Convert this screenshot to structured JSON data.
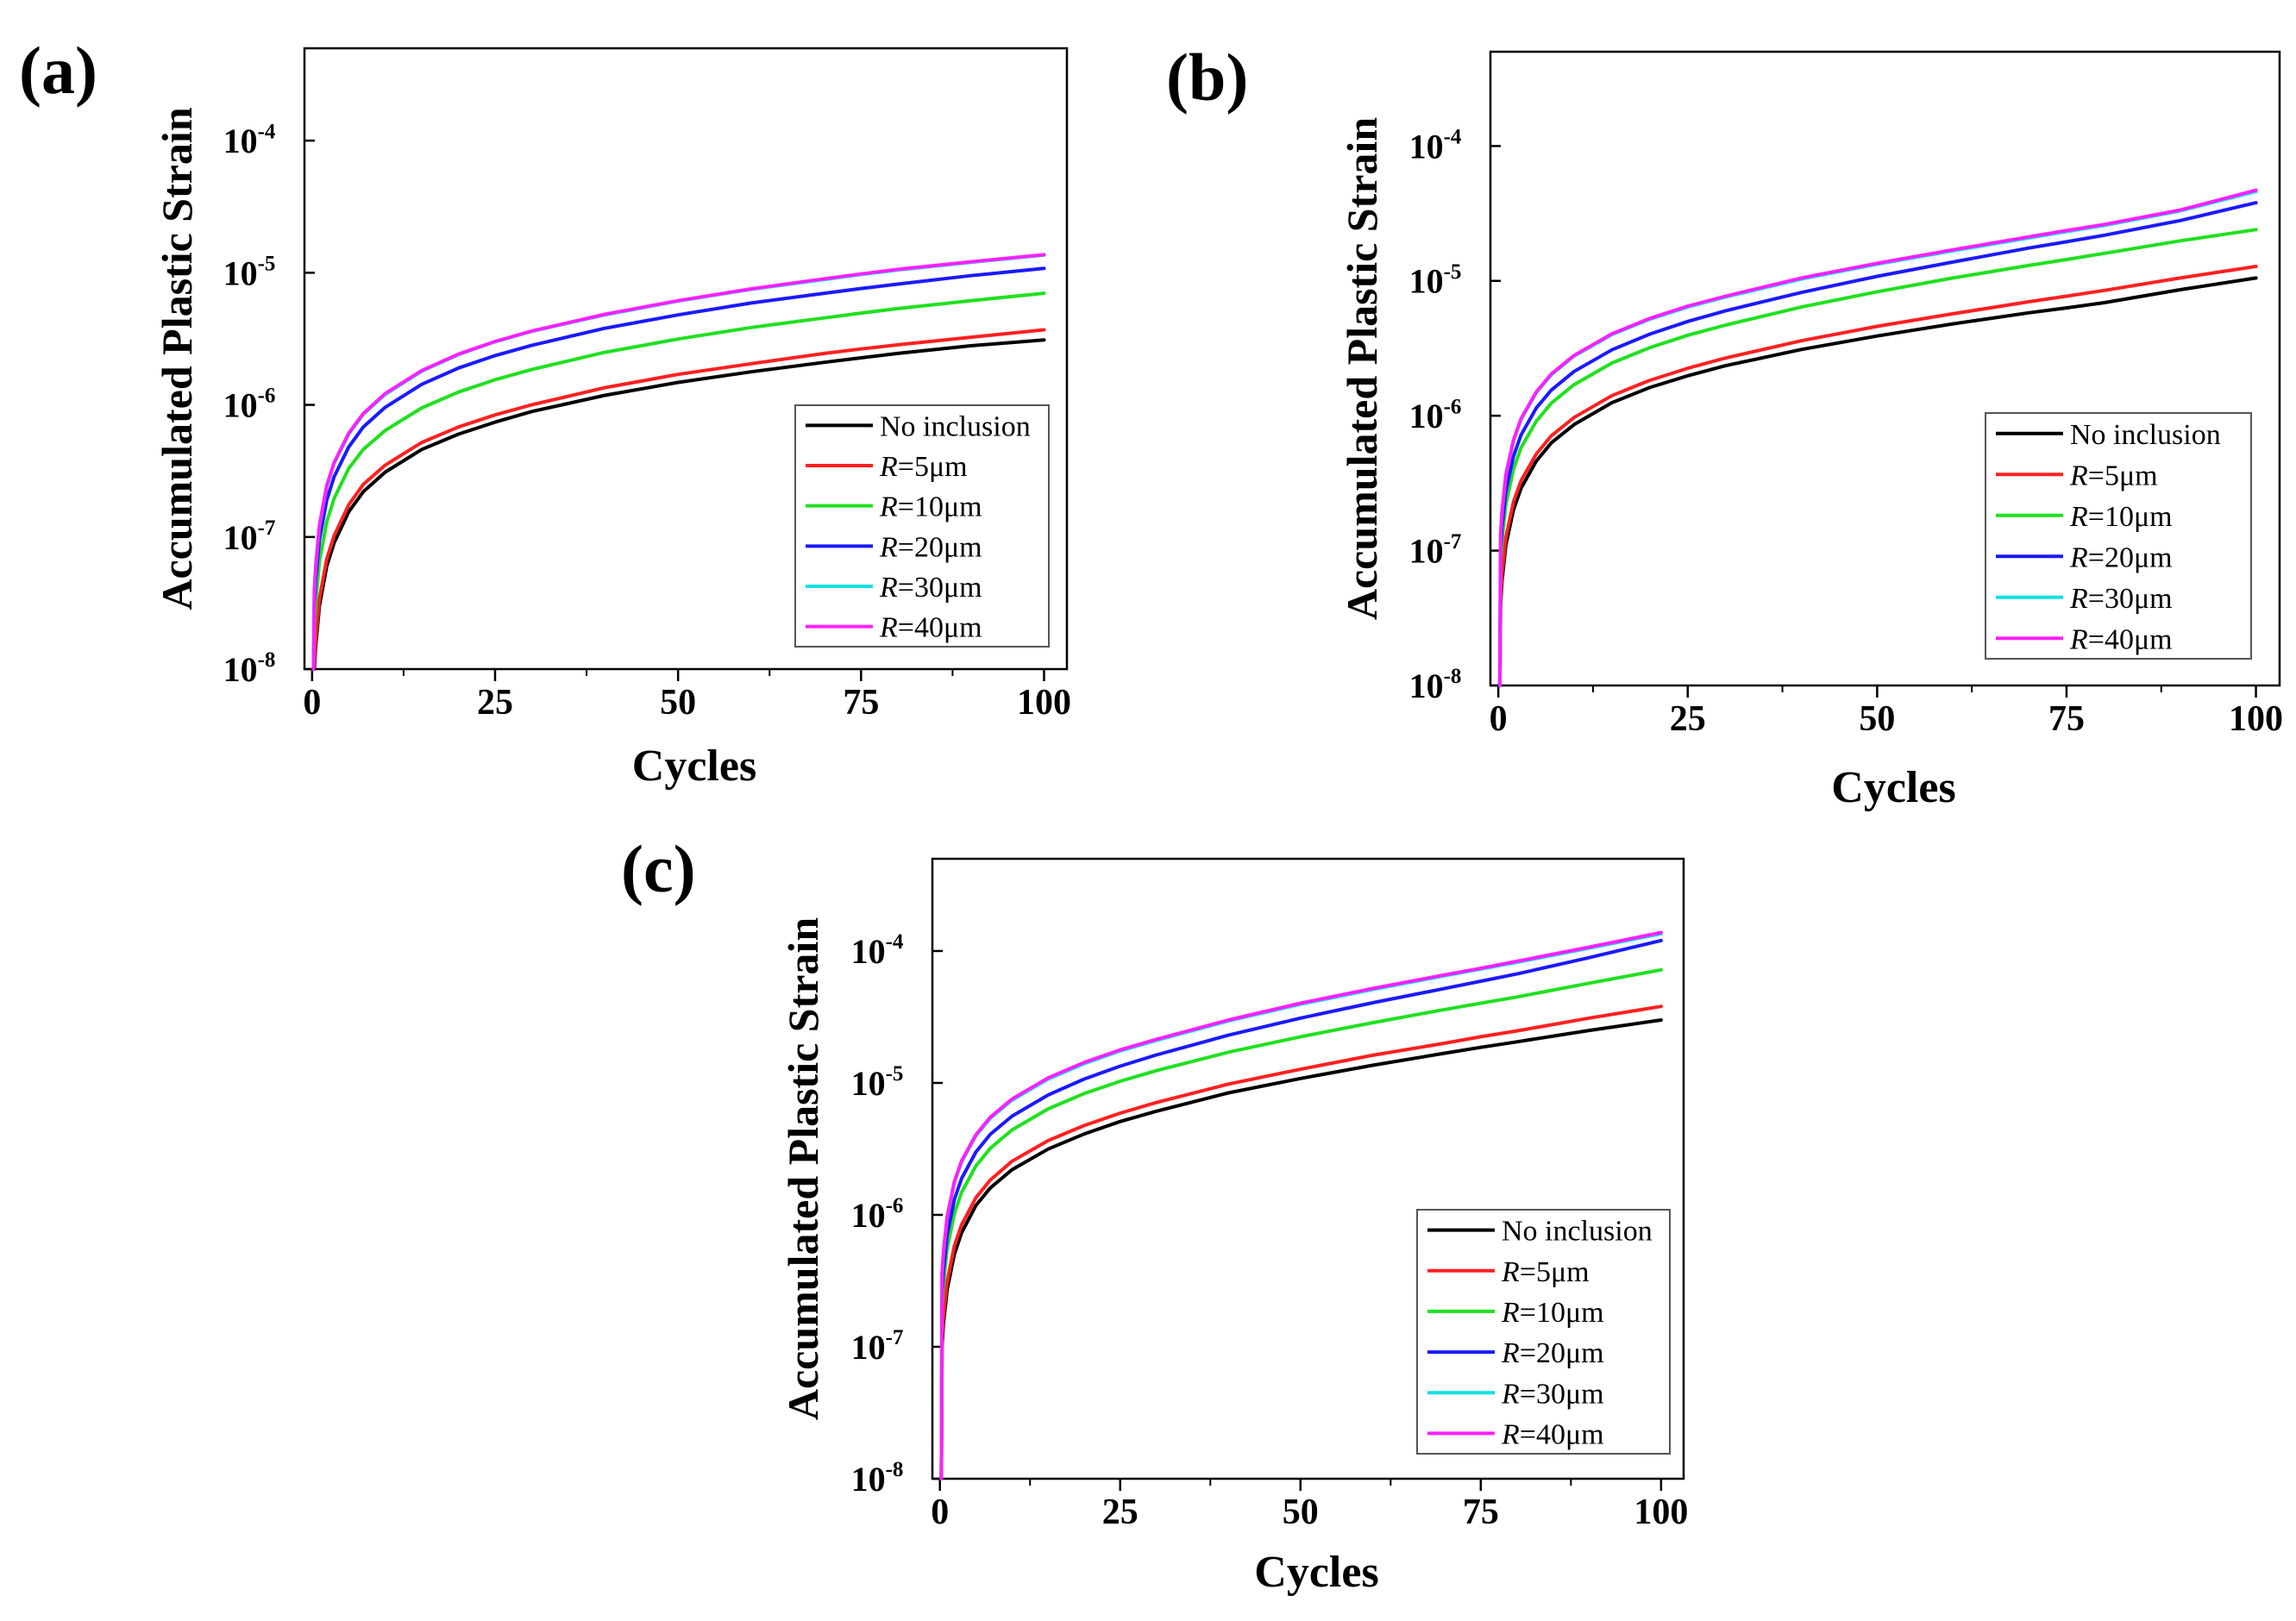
{
  "figure": {
    "colors": {
      "No inclusion": "#000000",
      "R=5μm": "#ff2020",
      "R=10μm": "#20e020",
      "R=20μm": "#1a1aff",
      "R=30μm": "#10e0e0",
      "R=40μm": "#ff20ff"
    }
  },
  "chart_data": [
    {
      "panel_label": "(a)",
      "type": "line",
      "xlabel": "Cycles",
      "ylabel": "Accumulated Plastic Strain",
      "xlim": [
        0,
        100
      ],
      "ylim": [
        1e-08,
        0.0005
      ],
      "yscale": "log",
      "xticks": [
        {
          "v": 0,
          "label": "0"
        },
        {
          "v": 25,
          "label": "25"
        },
        {
          "v": 50,
          "label": "50"
        },
        {
          "v": 75,
          "label": "75"
        },
        {
          "v": 100,
          "label": "100"
        }
      ],
      "yticks": [
        {
          "exp": -8,
          "base": "10",
          "sup": "-8"
        },
        {
          "exp": -7,
          "base": "10",
          "sup": "-7"
        },
        {
          "exp": -6,
          "base": "10",
          "sup": "-6"
        },
        {
          "exp": -5,
          "base": "10",
          "sup": "-5"
        },
        {
          "exp": -4,
          "base": "10",
          "sup": "-4"
        }
      ],
      "legend_position": "lower-right",
      "x": [
        0.3,
        0.5,
        1,
        2,
        3,
        5,
        7,
        10,
        15,
        20,
        25,
        30,
        40,
        50,
        60,
        70,
        75,
        80,
        90,
        100
      ],
      "series": [
        {
          "name": "No inclusion",
          "label_italic": "",
          "label_rest": "No inclusion",
          "values": [
            1e-08,
            1.5e-08,
            3e-08,
            6e-08,
            9e-08,
            1.55e-07,
            2.2e-07,
            3.1e-07,
            4.6e-07,
            6e-07,
            7.4e-07,
            8.9e-07,
            1.18e-06,
            1.48e-06,
            1.78e-06,
            2.1e-06,
            2.27e-06,
            2.45e-06,
            2.8e-06,
            3.1e-06
          ]
        },
        {
          "name": "R=5μm",
          "label_italic": "R",
          "label_rest": "=5μm",
          "values": [
            1.1e-08,
            1.7e-08,
            3.4e-08,
            6.8e-08,
            1.02e-07,
            1.75e-07,
            2.5e-07,
            3.5e-07,
            5.2e-07,
            6.8e-07,
            8.4e-07,
            1e-06,
            1.35e-06,
            1.7e-06,
            2.05e-06,
            2.45e-06,
            2.65e-06,
            2.85e-06,
            3.25e-06,
            3.7e-06
          ]
        },
        {
          "name": "R=10μm",
          "label_italic": "R",
          "label_rest": "=10μm",
          "values": [
            2e-08,
            3.2e-08,
            6.5e-08,
            1.3e-07,
            1.95e-07,
            3.3e-07,
            4.6e-07,
            6.4e-07,
            9.5e-07,
            1.25e-06,
            1.55e-06,
            1.85e-06,
            2.5e-06,
            3.15e-06,
            3.85e-06,
            4.55e-06,
            4.95e-06,
            5.35e-06,
            6.15e-06,
            7e-06
          ]
        },
        {
          "name": "R=20μm",
          "label_italic": "R",
          "label_rest": "=20μm",
          "values": [
            3e-08,
            4.8e-08,
            9.5e-08,
            1.9e-07,
            2.85e-07,
            4.8e-07,
            6.8e-07,
            9.6e-07,
            1.43e-06,
            1.9e-06,
            2.36e-06,
            2.82e-06,
            3.8e-06,
            4.8e-06,
            5.9e-06,
            7e-06,
            7.6e-06,
            8.2e-06,
            9.5e-06,
            1.08e-05
          ]
        },
        {
          "name": "R=30μm",
          "label_italic": "R",
          "label_rest": "=30μm",
          "values": [
            3.8e-08,
            6e-08,
            1.2e-07,
            2.4e-07,
            3.6e-07,
            6e-07,
            8.5e-07,
            1.2e-06,
            1.8e-06,
            2.4e-06,
            3e-06,
            3.6e-06,
            4.8e-06,
            6.1e-06,
            7.5e-06,
            8.9e-06,
            9.7e-06,
            1.05e-05,
            1.2e-05,
            1.36e-05
          ]
        },
        {
          "name": "R=40μm",
          "label_italic": "R",
          "label_rest": "=40μm",
          "values": [
            3.9e-08,
            6.1e-08,
            1.22e-07,
            2.45e-07,
            3.65e-07,
            6.1e-07,
            8.6e-07,
            1.22e-06,
            1.82e-06,
            2.42e-06,
            3.02e-06,
            3.62e-06,
            4.85e-06,
            6.15e-06,
            7.55e-06,
            9e-06,
            9.8e-06,
            1.06e-05,
            1.21e-05,
            1.37e-05
          ]
        }
      ]
    },
    {
      "panel_label": "(b)",
      "type": "line",
      "xlabel": "Cycles",
      "ylabel": "Accumulated Plastic Strain",
      "xlim": [
        0,
        100
      ],
      "ylim": [
        1e-08,
        0.0005
      ],
      "yscale": "log",
      "xticks": [
        {
          "v": 0,
          "label": "0"
        },
        {
          "v": 25,
          "label": "25"
        },
        {
          "v": 50,
          "label": "50"
        },
        {
          "v": 75,
          "label": "75"
        },
        {
          "v": 100,
          "label": "100"
        }
      ],
      "yticks": [
        {
          "exp": -8,
          "base": "10",
          "sup": "-8"
        },
        {
          "exp": -7,
          "base": "10",
          "sup": "-7"
        },
        {
          "exp": -6,
          "base": "10",
          "sup": "-6"
        },
        {
          "exp": -5,
          "base": "10",
          "sup": "-5"
        },
        {
          "exp": -4,
          "base": "10",
          "sup": "-4"
        }
      ],
      "legend_position": "lower-right",
      "x": [
        0.3,
        0.5,
        1,
        2,
        3,
        5,
        7,
        10,
        15,
        20,
        25,
        30,
        40,
        50,
        60,
        70,
        75,
        80,
        90,
        100
      ],
      "series": [
        {
          "name": "No inclusion",
          "label_italic": "",
          "label_rest": "No inclusion",
          "values": [
            4e-08,
            6e-08,
            1.1e-07,
            2e-07,
            2.9e-07,
            4.6e-07,
            6.3e-07,
            8.6e-07,
            1.25e-06,
            1.62e-06,
            1.98e-06,
            2.35e-06,
            3.1e-06,
            3.9e-06,
            4.8e-06,
            5.8e-06,
            6.3e-06,
            6.9e-06,
            8.6e-06,
            1.05e-05
          ]
        },
        {
          "name": "R=5μm",
          "label_italic": "R",
          "label_rest": "=5μm",
          "values": [
            4.5e-08,
            6.8e-08,
            1.25e-07,
            2.3e-07,
            3.3e-07,
            5.2e-07,
            7.1e-07,
            9.7e-07,
            1.41e-06,
            1.83e-06,
            2.25e-06,
            2.68e-06,
            3.6e-06,
            4.6e-06,
            5.7e-06,
            7e-06,
            7.7e-06,
            8.5e-06,
            1.05e-05,
            1.28e-05
          ]
        },
        {
          "name": "R=10μm",
          "label_italic": "R",
          "label_rest": "=10μm",
          "values": [
            8e-08,
            1.2e-07,
            2.2e-07,
            4e-07,
            5.8e-07,
            9.1e-07,
            1.24e-06,
            1.7e-06,
            2.46e-06,
            3.2e-06,
            3.95e-06,
            4.7e-06,
            6.4e-06,
            8.3e-06,
            1.05e-05,
            1.3e-05,
            1.44e-05,
            1.6e-05,
            1.98e-05,
            2.4e-05
          ]
        },
        {
          "name": "R=20μm",
          "label_italic": "R",
          "label_rest": "=20μm",
          "values": [
            1e-07,
            1.5e-07,
            2.75e-07,
            5e-07,
            7.2e-07,
            1.14e-06,
            1.55e-06,
            2.13e-06,
            3.08e-06,
            4.03e-06,
            5e-06,
            6e-06,
            8.2e-06,
            1.08e-05,
            1.38e-05,
            1.75e-05,
            1.95e-05,
            2.18e-05,
            2.8e-05,
            3.8e-05
          ]
        },
        {
          "name": "R=30μm",
          "label_italic": "R",
          "label_rest": "=30μm",
          "values": [
            1.3e-07,
            1.95e-07,
            3.6e-07,
            6.5e-07,
            9.4e-07,
            1.48e-06,
            2.01e-06,
            2.77e-06,
            4e-06,
            5.2e-06,
            6.4e-06,
            7.6e-06,
            1.03e-05,
            1.33e-05,
            1.67e-05,
            2.08e-05,
            2.32e-05,
            2.58e-05,
            3.3e-05,
            4.6e-05
          ]
        },
        {
          "name": "R=40μm",
          "label_italic": "R",
          "label_rest": "=40μm",
          "values": [
            1.32e-07,
            1.98e-07,
            3.65e-07,
            6.6e-07,
            9.5e-07,
            1.5e-06,
            2.04e-06,
            2.8e-06,
            4.05e-06,
            5.27e-06,
            6.5e-06,
            7.7e-06,
            1.05e-05,
            1.35e-05,
            1.7e-05,
            2.12e-05,
            2.36e-05,
            2.62e-05,
            3.35e-05,
            4.7e-05
          ]
        }
      ]
    },
    {
      "panel_label": "(c)",
      "type": "line",
      "xlabel": "Cycles",
      "ylabel": "Accumulated Plastic Strain",
      "xlim": [
        0,
        100
      ],
      "ylim": [
        1e-08,
        0.0005
      ],
      "yscale": "log",
      "xticks": [
        {
          "v": 0,
          "label": "0"
        },
        {
          "v": 25,
          "label": "25"
        },
        {
          "v": 50,
          "label": "50"
        },
        {
          "v": 75,
          "label": "75"
        },
        {
          "v": 100,
          "label": "100"
        }
      ],
      "yticks": [
        {
          "exp": -8,
          "base": "10",
          "sup": "-8"
        },
        {
          "exp": -7,
          "base": "10",
          "sup": "-7"
        },
        {
          "exp": -6,
          "base": "10",
          "sup": "-6"
        },
        {
          "exp": -5,
          "base": "10",
          "sup": "-5"
        },
        {
          "exp": -4,
          "base": "10",
          "sup": "-4"
        }
      ],
      "legend_position": "lower-right",
      "x": [
        0.3,
        0.5,
        1,
        2,
        3,
        5,
        7,
        10,
        15,
        20,
        25,
        30,
        40,
        50,
        60,
        70,
        75,
        80,
        90,
        100
      ],
      "series": [
        {
          "name": "No inclusion",
          "label_italic": "",
          "label_rest": "No inclusion",
          "values": [
            1e-07,
            1.5e-07,
            2.7e-07,
            5e-07,
            7.3e-07,
            1.18e-06,
            1.6e-06,
            2.2e-06,
            3.15e-06,
            4.1e-06,
            5.1e-06,
            6.1e-06,
            8.4e-06,
            1.08e-05,
            1.36e-05,
            1.68e-05,
            1.86e-05,
            2.05e-05,
            2.5e-05,
            3e-05
          ]
        },
        {
          "name": "R=5μm",
          "label_italic": "R",
          "label_rest": "=5μm",
          "values": [
            1.15e-07,
            1.72e-07,
            3.1e-07,
            5.8e-07,
            8.4e-07,
            1.35e-06,
            1.84e-06,
            2.55e-06,
            3.65e-06,
            4.75e-06,
            5.9e-06,
            7.1e-06,
            9.8e-06,
            1.27e-05,
            1.62e-05,
            2e-05,
            2.24e-05,
            2.48e-05,
            3.1e-05,
            3.8e-05
          ]
        },
        {
          "name": "R=10μm",
          "label_italic": "R",
          "label_rest": "=10μm",
          "values": [
            2e-07,
            3e-07,
            5.5e-07,
            1.02e-06,
            1.48e-06,
            2.35e-06,
            3.2e-06,
            4.4e-06,
            6.35e-06,
            8.3e-06,
            1.03e-05,
            1.24e-05,
            1.71e-05,
            2.24e-05,
            2.86e-05,
            3.6e-05,
            4.02e-05,
            4.48e-05,
            5.7e-05,
            7.2e-05
          ]
        },
        {
          "name": "R=20μm",
          "label_italic": "R",
          "label_rest": "=20μm",
          "values": [
            2.5e-07,
            3.8e-07,
            7e-07,
            1.3e-06,
            1.88e-06,
            3e-06,
            4.08e-06,
            5.6e-06,
            8.1e-06,
            1.07e-05,
            1.34e-05,
            1.63e-05,
            2.3e-05,
            3.1e-05,
            4.05e-05,
            5.2e-05,
            5.9e-05,
            6.7e-05,
            8.9e-05,
            0.00012
          ]
        },
        {
          "name": "R=30μm",
          "label_italic": "R",
          "label_rest": "=30μm",
          "values": [
            3.5e-07,
            5.2e-07,
            9.5e-07,
            1.75e-06,
            2.52e-06,
            3.98e-06,
            5.4e-06,
            7.4e-06,
            1.07e-05,
            1.4e-05,
            1.75e-05,
            2.1e-05,
            2.95e-05,
            3.95e-05,
            5.1e-05,
            6.5e-05,
            7.3e-05,
            8.2e-05,
            0.000105,
            0.000135
          ]
        },
        {
          "name": "R=40μm",
          "label_italic": "R",
          "label_rest": "=40μm",
          "values": [
            3.6e-07,
            5.3e-07,
            9.7e-07,
            1.78e-06,
            2.56e-06,
            4.05e-06,
            5.5e-06,
            7.55e-06,
            1.09e-05,
            1.43e-05,
            1.78e-05,
            2.14e-05,
            3e-05,
            4.02e-05,
            5.2e-05,
            6.6e-05,
            7.4e-05,
            8.35e-05,
            0.000107,
            0.000138
          ]
        }
      ]
    }
  ]
}
